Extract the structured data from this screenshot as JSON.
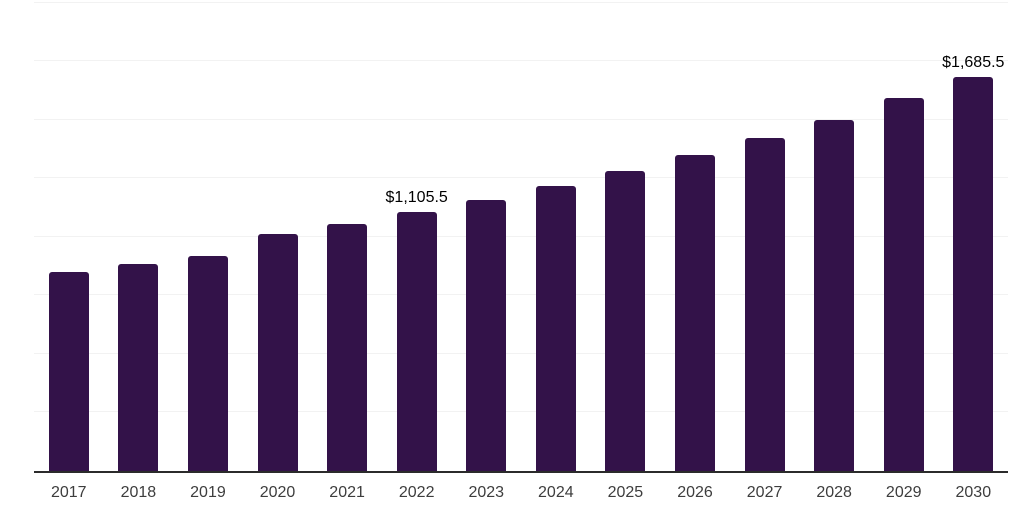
{
  "chart_data": {
    "type": "bar",
    "title": "",
    "xlabel": "",
    "ylabel": "",
    "categories": [
      "2017",
      "2018",
      "2019",
      "2020",
      "2021",
      "2022",
      "2023",
      "2024",
      "2025",
      "2026",
      "2027",
      "2028",
      "2029",
      "2030"
    ],
    "values": [
      852,
      885,
      921,
      1011,
      1056,
      1105.5,
      1158,
      1219,
      1280,
      1349,
      1422,
      1501,
      1593,
      1685.5
    ],
    "data_labels": {
      "2022": "$1,105.5",
      "2030": "$1,685.5"
    },
    "ylim": [
      0,
      2000
    ],
    "grid": true,
    "grid_step": 250,
    "y_tick_labels_visible": false,
    "legend_position": "none",
    "colors": {
      "bar": "#331249",
      "gridline": "#f2f2f2",
      "axis_line": "#2b2b2b",
      "tick_label": "#3d3d3d",
      "data_label": "#000000",
      "background": "#ffffff"
    }
  }
}
